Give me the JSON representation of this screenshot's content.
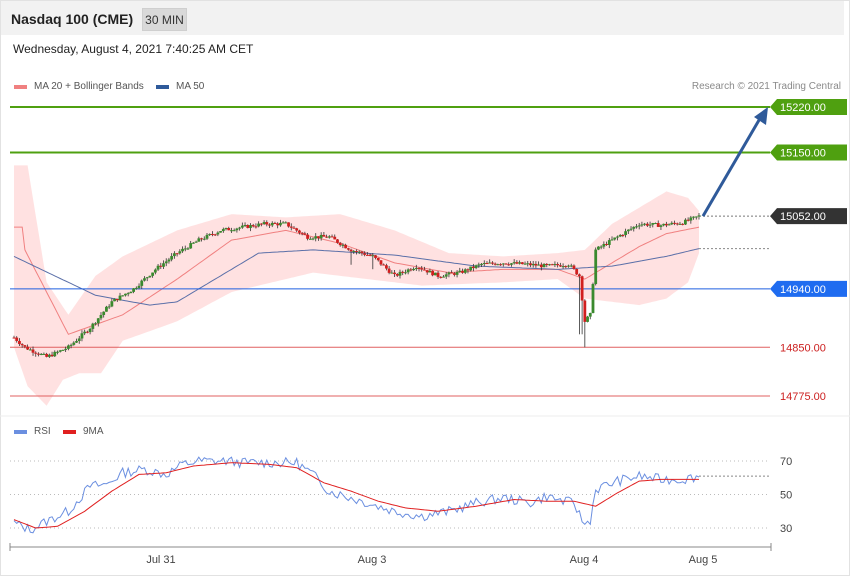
{
  "header": {
    "title": "Nasdaq 100 (CME)",
    "interval": "30 MIN"
  },
  "datetime": "Wednesday, August 4, 2021 7:40:25 AM CET",
  "legend": {
    "ma20_label": "MA 20 + Bollinger Bands",
    "ma50_label": "MA 50",
    "copyright": "Research © 2021 Trading Central"
  },
  "rsi_legend": {
    "rsi_label": "RSI",
    "ma9_label": "9MA"
  },
  "colors": {
    "bull": "#3a8a2e",
    "bear": "#d11f1f",
    "band": "#ffdcdc",
    "ma20": "#f08080",
    "ma50": "#5a6fa8",
    "resistance": "#4fa010",
    "support_blue": "#1f5fe0",
    "support_red": "#e06060",
    "arrow": "#2f5a9a",
    "rsi": "#6b8fe0",
    "rsi_ma": "#e02020"
  },
  "chart_data": [
    {
      "type": "candlestick",
      "ylim": [
        14700,
        15270
      ],
      "x_ticks": [
        "Jul 31",
        "Aug 3",
        "Aug 4",
        "Aug 5"
      ],
      "levels": [
        {
          "name": "resistance-2",
          "value": 15220,
          "label": "15220.00",
          "kind": "resistance"
        },
        {
          "name": "resistance-1",
          "value": 15150,
          "label": "15150.00",
          "kind": "resistance"
        },
        {
          "name": "current-price",
          "value": 15052,
          "label": "15052.00",
          "kind": "current"
        },
        {
          "name": "pivot",
          "value": 14940,
          "label": "14940.00",
          "kind": "pivot"
        },
        {
          "name": "support-1",
          "value": 14850,
          "label": "14850.00",
          "kind": "support"
        },
        {
          "name": "support-2",
          "value": 14775,
          "label": "14775.00",
          "kind": "support"
        }
      ],
      "close_anchors": [
        [
          0,
          14865
        ],
        [
          4,
          14850
        ],
        [
          12,
          14835
        ],
        [
          20,
          14850
        ],
        [
          28,
          14880
        ],
        [
          36,
          14920
        ],
        [
          44,
          14940
        ],
        [
          52,
          14970
        ],
        [
          60,
          14995
        ],
        [
          68,
          15015
        ],
        [
          76,
          15030
        ],
        [
          84,
          15035
        ],
        [
          92,
          15040
        ],
        [
          100,
          15040
        ],
        [
          108,
          15020
        ],
        [
          116,
          15020
        ],
        [
          124,
          15000
        ],
        [
          132,
          14990
        ],
        [
          140,
          14960
        ],
        [
          148,
          14975
        ],
        [
          156,
          14960
        ],
        [
          164,
          14965
        ],
        [
          172,
          14978
        ],
        [
          180,
          14980
        ],
        [
          188,
          14978
        ],
        [
          196,
          14975
        ],
        [
          204,
          14978
        ],
        [
          208,
          14960
        ],
        [
          210,
          14890
        ],
        [
          212,
          14900
        ],
        [
          214,
          15000
        ],
        [
          222,
          15020
        ],
        [
          230,
          15040
        ],
        [
          238,
          15038
        ],
        [
          246,
          15042
        ],
        [
          252,
          15052
        ]
      ],
      "ma20_anchors": [
        [
          4,
          15000
        ],
        [
          20,
          14870
        ],
        [
          40,
          14900
        ],
        [
          60,
          14955
        ],
        [
          80,
          15015
        ],
        [
          100,
          15030
        ],
        [
          120,
          15010
        ],
        [
          140,
          14980
        ],
        [
          160,
          14965
        ],
        [
          180,
          14970
        ],
        [
          200,
          14970
        ],
        [
          210,
          14955
        ],
        [
          220,
          14980
        ],
        [
          230,
          15005
        ],
        [
          240,
          15025
        ],
        [
          252,
          15035
        ]
      ],
      "ma50_anchors": [
        [
          0,
          14990
        ],
        [
          30,
          14930
        ],
        [
          50,
          14915
        ],
        [
          60,
          14920
        ],
        [
          70,
          14945
        ],
        [
          90,
          14995
        ],
        [
          110,
          15000
        ],
        [
          140,
          14992
        ],
        [
          170,
          14975
        ],
        [
          200,
          14970
        ],
        [
          220,
          14975
        ],
        [
          240,
          14990
        ],
        [
          252,
          15002
        ]
      ],
      "band_upper_anchors": [
        [
          0,
          15130
        ],
        [
          5,
          15130
        ],
        [
          12,
          14950
        ],
        [
          20,
          14900
        ],
        [
          30,
          14960
        ],
        [
          40,
          14990
        ],
        [
          60,
          15030
        ],
        [
          80,
          15055
        ],
        [
          100,
          15050
        ],
        [
          120,
          15055
        ],
        [
          140,
          15030
        ],
        [
          160,
          14995
        ],
        [
          180,
          14990
        ],
        [
          200,
          14995
        ],
        [
          210,
          15000
        ],
        [
          220,
          15040
        ],
        [
          230,
          15065
        ],
        [
          240,
          15090
        ],
        [
          248,
          15080
        ],
        [
          252,
          15060
        ]
      ],
      "band_lower_anchors": [
        [
          0,
          14850
        ],
        [
          5,
          14790
        ],
        [
          12,
          14760
        ],
        [
          18,
          14800
        ],
        [
          24,
          14810
        ],
        [
          32,
          14810
        ],
        [
          40,
          14860
        ],
        [
          60,
          14890
        ],
        [
          80,
          14935
        ],
        [
          100,
          14955
        ],
        [
          110,
          14965
        ],
        [
          130,
          14955
        ],
        [
          150,
          14945
        ],
        [
          180,
          14950
        ],
        [
          200,
          14955
        ],
        [
          210,
          14925
        ],
        [
          220,
          14920
        ],
        [
          230,
          14915
        ],
        [
          240,
          14925
        ],
        [
          248,
          14950
        ],
        [
          252,
          14995
        ]
      ]
    },
    {
      "type": "line",
      "ylim": [
        12,
        88
      ],
      "y_ticks": [
        70,
        50,
        30
      ],
      "series": [
        {
          "name": "RSI",
          "anchors": [
            [
              0,
              33
            ],
            [
              6,
              29
            ],
            [
              12,
              34
            ],
            [
              20,
              40
            ],
            [
              28,
              55
            ],
            [
              34,
              56
            ],
            [
              40,
              63
            ],
            [
              48,
              65
            ],
            [
              56,
              62
            ],
            [
              62,
              68
            ],
            [
              68,
              70
            ],
            [
              78,
              70
            ],
            [
              84,
              69
            ],
            [
              92,
              69
            ],
            [
              104,
              69
            ],
            [
              110,
              62
            ],
            [
              116,
              52
            ],
            [
              124,
              48
            ],
            [
              132,
              44
            ],
            [
              140,
              40
            ],
            [
              150,
              37
            ],
            [
              160,
              40
            ],
            [
              170,
              45
            ],
            [
              180,
              48
            ],
            [
              190,
              45
            ],
            [
              196,
              49
            ],
            [
              202,
              46
            ],
            [
              206,
              45
            ],
            [
              208,
              38
            ],
            [
              210,
              32
            ],
            [
              212,
              35
            ],
            [
              214,
              53
            ],
            [
              222,
              58
            ],
            [
              230,
              61
            ],
            [
              238,
              59
            ],
            [
              246,
              59
            ],
            [
              252,
              61
            ]
          ]
        },
        {
          "name": "9MA",
          "anchors": [
            [
              0,
              35
            ],
            [
              8,
              30
            ],
            [
              16,
              31
            ],
            [
              26,
              40
            ],
            [
              36,
              52
            ],
            [
              46,
              62
            ],
            [
              56,
              63
            ],
            [
              66,
              67
            ],
            [
              80,
              69
            ],
            [
              94,
              68
            ],
            [
              104,
              66
            ],
            [
              114,
              57
            ],
            [
              124,
              52
            ],
            [
              134,
              46
            ],
            [
              144,
              42
            ],
            [
              156,
              40
            ],
            [
              170,
              43
            ],
            [
              184,
              47
            ],
            [
              196,
              46
            ],
            [
              206,
              46
            ],
            [
              214,
              43
            ],
            [
              222,
              51
            ],
            [
              230,
              58
            ],
            [
              238,
              59
            ],
            [
              246,
              59
            ],
            [
              252,
              59
            ]
          ]
        }
      ]
    }
  ]
}
